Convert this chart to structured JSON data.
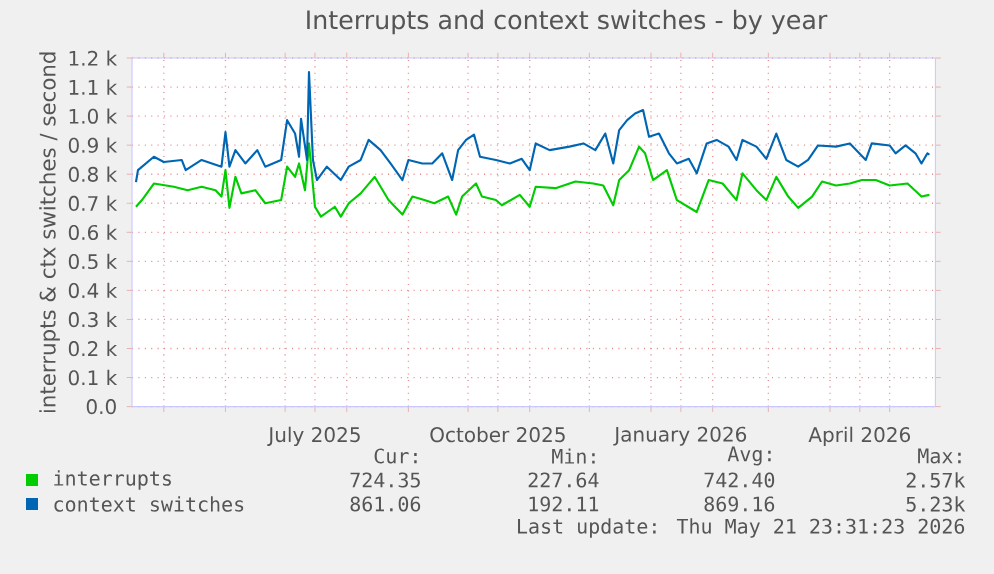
{
  "chart_data": {
    "type": "line",
    "title": "Interrupts and context switches - by year",
    "ylabel": "interrupts & ctx switches / second",
    "xlim": [
      "2025-04-15",
      "2026-05-24"
    ],
    "xticks": [
      {
        "value": "2025-05-01",
        "label": null
      },
      {
        "value": "2025-06-01",
        "label": null
      },
      {
        "value": "2025-07-01",
        "label": null
      },
      {
        "value": "2025-07-16",
        "label": "July 2025"
      },
      {
        "value": "2025-08-01",
        "label": null
      },
      {
        "value": "2025-09-01",
        "label": null
      },
      {
        "value": "2025-10-01",
        "label": null
      },
      {
        "value": "2025-10-16",
        "label": "October 2025"
      },
      {
        "value": "2025-11-01",
        "label": null
      },
      {
        "value": "2025-12-01",
        "label": null
      },
      {
        "value": "2026-01-01",
        "label": null
      },
      {
        "value": "2026-01-16",
        "label": "January 2026"
      },
      {
        "value": "2026-02-01",
        "label": null
      },
      {
        "value": "2026-03-01",
        "label": null
      },
      {
        "value": "2026-04-01",
        "label": null
      },
      {
        "value": "2026-04-16",
        "label": "April 2026"
      },
      {
        "value": "2026-05-01",
        "label": null
      }
    ],
    "ylim": [
      0,
      1200
    ],
    "yticks": [
      {
        "value": 0,
        "label": "0.0"
      },
      {
        "value": 100,
        "label": "0.1 k"
      },
      {
        "value": 200,
        "label": "0.2 k"
      },
      {
        "value": 300,
        "label": "0.3 k"
      },
      {
        "value": 400,
        "label": "0.4 k"
      },
      {
        "value": 500,
        "label": "0.5 k"
      },
      {
        "value": 600,
        "label": "0.6 k"
      },
      {
        "value": 700,
        "label": "0.7 k"
      },
      {
        "value": 800,
        "label": "0.8 k"
      },
      {
        "value": 900,
        "label": "0.9 k"
      },
      {
        "value": 1000,
        "label": "1.0 k"
      },
      {
        "value": 1100,
        "label": "1.1 k"
      },
      {
        "value": 1200,
        "label": "1.2 k"
      }
    ],
    "grid": true,
    "legend": "bottom",
    "marker": "none",
    "line_style": "solid",
    "series": [
      {
        "name": "interrupts",
        "color": "#00cc00",
        "x": [
          "2025-04-17",
          "2025-04-20",
          "2025-04-26",
          "2025-05-06",
          "2025-05-13",
          "2025-05-20",
          "2025-05-27",
          "2025-05-30",
          "2025-06-01",
          "2025-06-03",
          "2025-06-06",
          "2025-06-09",
          "2025-06-16",
          "2025-06-21",
          "2025-06-29",
          "2025-07-02",
          "2025-07-06",
          "2025-07-08",
          "2025-07-11",
          "2025-07-13",
          "2025-07-16",
          "2025-07-19",
          "2025-07-26",
          "2025-07-29",
          "2025-08-02",
          "2025-08-08",
          "2025-08-15",
          "2025-08-22",
          "2025-08-29",
          "2025-09-03",
          "2025-09-09",
          "2025-09-14",
          "2025-09-21",
          "2025-09-25",
          "2025-09-28",
          "2025-10-05",
          "2025-10-08",
          "2025-10-15",
          "2025-10-18",
          "2025-10-27",
          "2025-11-01",
          "2025-11-04",
          "2025-11-14",
          "2025-11-24",
          "2025-12-03",
          "2025-12-08",
          "2025-12-13",
          "2025-12-16",
          "2025-12-21",
          "2025-12-26",
          "2025-12-29",
          "2026-01-02",
          "2026-01-09",
          "2026-01-14",
          "2026-01-24",
          "2026-01-30",
          "2026-02-06",
          "2026-02-13",
          "2026-02-16",
          "2026-02-23",
          "2026-02-28",
          "2026-03-05",
          "2026-03-11",
          "2026-03-16",
          "2026-03-23",
          "2026-03-28",
          "2026-04-04",
          "2026-04-11",
          "2026-04-17",
          "2026-04-24",
          "2026-05-01",
          "2026-05-10",
          "2026-05-17",
          "2026-05-21"
        ],
        "values": [
          688,
          711,
          768,
          757,
          745,
          757,
          745,
          723,
          814,
          684,
          791,
          734,
          745,
          700,
          711,
          826,
          791,
          837,
          745,
          906,
          688,
          654,
          688,
          654,
          700,
          734,
          791,
          711,
          661,
          723,
          711,
          700,
          723,
          661,
          723,
          768,
          723,
          711,
          693,
          729,
          688,
          757,
          752,
          775,
          768,
          761,
          693,
          780,
          814,
          895,
          872,
          780,
          814,
          711,
          670,
          780,
          768,
          711,
          803,
          745,
          711,
          791,
          723,
          684,
          723,
          775,
          761,
          768,
          780,
          780,
          761,
          768,
          723,
          729
        ]
      },
      {
        "name": "context switches",
        "color": "#0066b3",
        "x": [
          "2025-04-17",
          "2025-04-18",
          "2025-04-26",
          "2025-05-01",
          "2025-05-10",
          "2025-05-12",
          "2025-05-20",
          "2025-05-30",
          "2025-06-01",
          "2025-06-03",
          "2025-06-06",
          "2025-06-11",
          "2025-06-17",
          "2025-06-21",
          "2025-06-29",
          "2025-07-02",
          "2025-07-06",
          "2025-07-08",
          "2025-07-09",
          "2025-07-12",
          "2025-07-13",
          "2025-07-15",
          "2025-07-17",
          "2025-07-22",
          "2025-07-29",
          "2025-08-02",
          "2025-08-08",
          "2025-08-12",
          "2025-08-18",
          "2025-08-23",
          "2025-08-29",
          "2025-09-01",
          "2025-09-08",
          "2025-09-13",
          "2025-09-18",
          "2025-09-23",
          "2025-09-26",
          "2025-09-30",
          "2025-10-04",
          "2025-10-07",
          "2025-10-15",
          "2025-10-22",
          "2025-10-28",
          "2025-11-01",
          "2025-11-04",
          "2025-11-11",
          "2025-11-21",
          "2025-11-28",
          "2025-12-04",
          "2025-12-09",
          "2025-12-13",
          "2025-12-16",
          "2025-12-20",
          "2025-12-24",
          "2025-12-28",
          "2025-12-31",
          "2026-01-05",
          "2026-01-10",
          "2026-01-14",
          "2026-01-20",
          "2026-01-24",
          "2026-01-29",
          "2026-02-03",
          "2026-02-09",
          "2026-02-13",
          "2026-02-16",
          "2026-02-23",
          "2026-02-28",
          "2026-03-05",
          "2026-03-10",
          "2026-03-16",
          "2026-03-21",
          "2026-03-26",
          "2026-04-04",
          "2026-04-11",
          "2026-04-19",
          "2026-04-22",
          "2026-05-01",
          "2026-05-04",
          "2026-05-09",
          "2026-05-14",
          "2026-05-17",
          "2026-05-20",
          "2026-05-21"
        ],
        "values": [
          773,
          814,
          860,
          842,
          849,
          814,
          849,
          826,
          945,
          826,
          883,
          837,
          883,
          826,
          849,
          986,
          940,
          860,
          991,
          849,
          1152,
          849,
          780,
          826,
          780,
          826,
          849,
          918,
          883,
          837,
          780,
          849,
          837,
          837,
          872,
          780,
          883,
          918,
          936,
          860,
          849,
          837,
          853,
          814,
          906,
          883,
          895,
          906,
          883,
          940,
          837,
          952,
          986,
          1009,
          1021,
          929,
          940,
          872,
          837,
          853,
          803,
          906,
          918,
          895,
          849,
          918,
          895,
          853,
          940,
          849,
          826,
          849,
          899,
          895,
          906,
          849,
          906,
          899,
          872,
          899,
          872,
          837,
          872,
          867
        ]
      }
    ],
    "annotations": [
      "Cur:",
      "Min:",
      "Avg:",
      "Max:",
      "724.35",
      "227.64",
      "742.40",
      "2.57k",
      "861.06",
      "192.11",
      "869.16",
      "5.23k",
      "Last update: Thu May 21 23:31:23 2026"
    ]
  }
}
